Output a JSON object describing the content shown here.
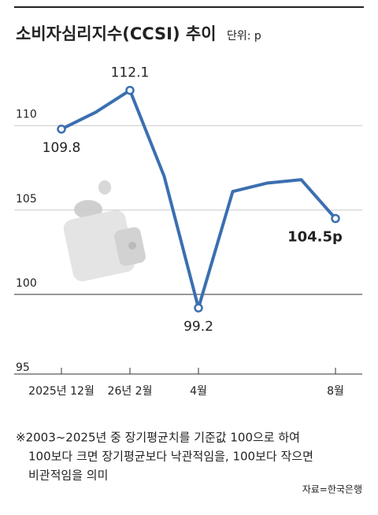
{
  "chart_data": {
    "type": "line",
    "title": "소비자심리지수(CCSI) 추이",
    "subtitle": "단위: p",
    "categories": [
      "2025년 12월",
      null,
      "26년 2월",
      null,
      "4월",
      null,
      null,
      null,
      "8월"
    ],
    "series": [
      {
        "name": "소비자심리지수",
        "color": "#3b6fb0",
        "values": [
          109.8,
          110.8,
          112.1,
          107.0,
          99.2,
          106.1,
          106.6,
          106.8,
          104.5
        ],
        "value_labels": [
          "109.8",
          null,
          "112.1",
          null,
          "99.2",
          null,
          null,
          null,
          "104.5p"
        ]
      }
    ],
    "ylim": [
      95,
      114
    ],
    "yticks": [
      95,
      100,
      105,
      110
    ],
    "grid": true,
    "notes": [
      "※2003~2025년 중 장기평균치를 기준값 100으로 하여",
      "100보다 크면 장기평균보다 낙관적임을, 100보다 작으면",
      "비관적임을 의미"
    ],
    "source": "자료=한국은행"
  }
}
